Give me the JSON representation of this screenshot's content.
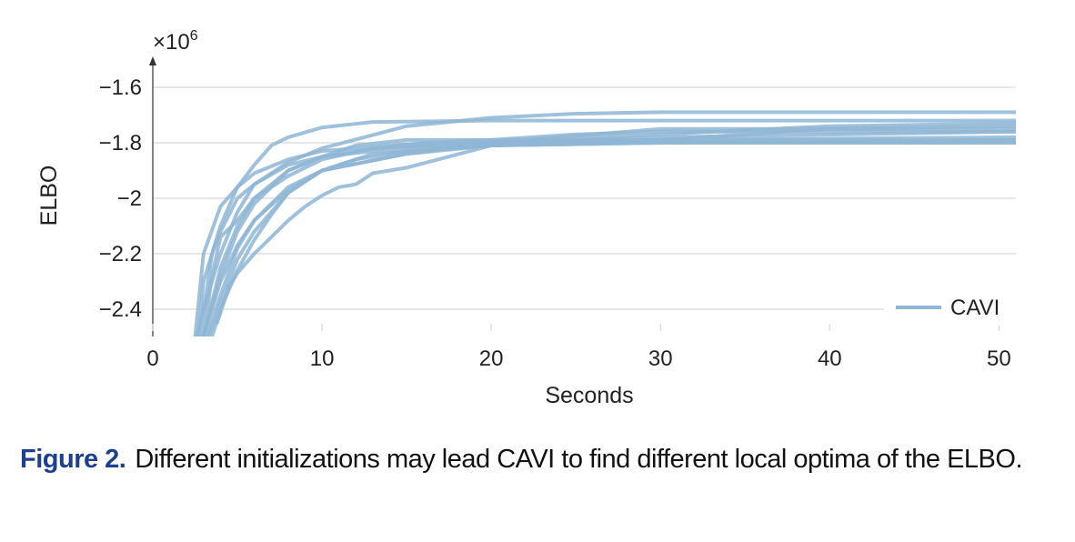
{
  "chart_data": {
    "type": "line",
    "title": "",
    "xlabel": "Seconds",
    "ylabel": "ELBO",
    "y_multiplier": "×10",
    "y_multiplier_exp": "6",
    "xlim": [
      0,
      51
    ],
    "ylim": [
      -2.5,
      -1.5
    ],
    "x_ticks": [
      0,
      10,
      20,
      30,
      40,
      50
    ],
    "x_tick_labels": [
      "0",
      "10",
      "20",
      "30",
      "40",
      "50"
    ],
    "y_ticks": [
      -1.6,
      -1.8,
      -2.0,
      -2.2,
      -2.4
    ],
    "y_tick_labels": [
      "−1.6",
      "−1.8",
      "−2",
      "−2.2",
      "−2.4"
    ],
    "grid": true,
    "legend": {
      "position": "bottom-right",
      "entries": [
        "CAVI"
      ]
    },
    "color": "#8fb6d5",
    "series": [
      {
        "x": [
          2.5,
          3,
          4,
          5,
          6,
          7,
          8,
          10,
          13,
          20,
          30,
          51
        ],
        "y": [
          -2.5,
          -2.2,
          -2.03,
          -1.96,
          -1.88,
          -1.81,
          -1.78,
          -1.745,
          -1.725,
          -1.72,
          -1.72,
          -1.72
        ]
      },
      {
        "x": [
          2.8,
          3.5,
          4,
          5,
          6,
          8,
          10,
          15,
          20,
          25,
          30,
          51
        ],
        "y": [
          -2.5,
          -2.2,
          -2.12,
          -2.0,
          -1.95,
          -1.87,
          -1.82,
          -1.74,
          -1.71,
          -1.695,
          -1.69,
          -1.69
        ]
      },
      {
        "x": [
          2.7,
          3,
          4,
          5,
          6,
          8,
          10,
          15,
          20,
          30,
          51
        ],
        "y": [
          -2.5,
          -2.3,
          -2.1,
          -1.96,
          -1.91,
          -1.86,
          -1.83,
          -1.805,
          -1.8,
          -1.8,
          -1.8
        ]
      },
      {
        "x": [
          3,
          4,
          5,
          6,
          8,
          10,
          12,
          15,
          20,
          30,
          51
        ],
        "y": [
          -2.5,
          -2.25,
          -2.1,
          -2.0,
          -1.9,
          -1.85,
          -1.81,
          -1.79,
          -1.79,
          -1.79,
          -1.79
        ]
      },
      {
        "x": [
          3,
          3.5,
          4,
          5,
          6,
          8,
          10,
          13,
          20,
          30,
          51
        ],
        "y": [
          -2.5,
          -2.28,
          -2.14,
          -2.08,
          -2.0,
          -1.92,
          -1.86,
          -1.82,
          -1.8,
          -1.78,
          -1.76
        ]
      },
      {
        "x": [
          3,
          4,
          5,
          6,
          8,
          10,
          15,
          20,
          30,
          40,
          51
        ],
        "y": [
          -2.5,
          -2.3,
          -2.17,
          -2.08,
          -1.97,
          -1.9,
          -1.84,
          -1.81,
          -1.79,
          -1.75,
          -1.74
        ]
      },
      {
        "x": [
          3.2,
          4,
          5,
          6,
          7,
          8,
          10,
          13,
          20,
          30,
          51
        ],
        "y": [
          -2.5,
          -2.35,
          -2.18,
          -2.08,
          -2.02,
          -1.96,
          -1.9,
          -1.84,
          -1.81,
          -1.8,
          -1.8
        ]
      },
      {
        "x": [
          3.3,
          4,
          5,
          6,
          8,
          10,
          15,
          20,
          30,
          40,
          51
        ],
        "y": [
          -2.5,
          -2.38,
          -2.22,
          -2.12,
          -1.98,
          -1.9,
          -1.84,
          -1.8,
          -1.77,
          -1.74,
          -1.73
        ]
      },
      {
        "x": [
          3.5,
          4,
          5,
          6,
          7,
          8,
          10,
          12,
          15,
          20,
          30,
          51
        ],
        "y": [
          -2.5,
          -2.4,
          -2.26,
          -2.15,
          -2.06,
          -1.98,
          -1.9,
          -1.86,
          -1.83,
          -1.81,
          -1.8,
          -1.79
        ]
      },
      {
        "x": [
          3.8,
          4.5,
          5,
          6,
          7,
          8,
          9,
          10,
          11,
          12,
          13,
          15,
          20,
          30,
          51
        ],
        "y": [
          -2.45,
          -2.32,
          -2.27,
          -2.2,
          -2.14,
          -2.08,
          -2.03,
          -1.99,
          -1.96,
          -1.95,
          -1.91,
          -1.89,
          -1.81,
          -1.79,
          -1.78
        ]
      },
      {
        "x": [
          2.6,
          3,
          4,
          5,
          6,
          8,
          10,
          13,
          16,
          20,
          25,
          30,
          51
        ],
        "y": [
          -2.5,
          -2.4,
          -2.2,
          -2.05,
          -1.95,
          -1.88,
          -1.85,
          -1.82,
          -1.8,
          -1.79,
          -1.77,
          -1.76,
          -1.76
        ]
      },
      {
        "x": [
          3,
          4,
          5,
          6,
          8,
          10,
          13,
          16,
          20,
          30,
          51
        ],
        "y": [
          -2.5,
          -2.28,
          -2.12,
          -2.02,
          -1.9,
          -1.85,
          -1.83,
          -1.815,
          -1.8,
          -1.75,
          -1.75
        ]
      }
    ]
  },
  "caption": {
    "label": "Figure 2.",
    "text": "Different initializations may lead CAVI to find different local optima of the ELBO."
  }
}
